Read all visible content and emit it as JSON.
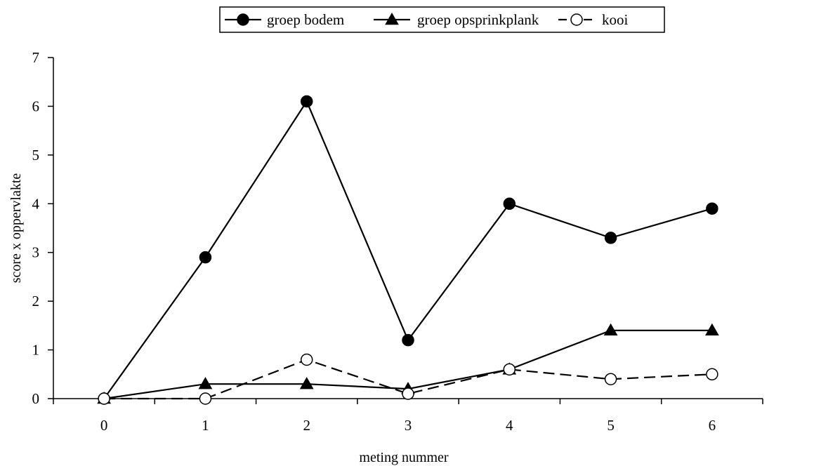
{
  "chart_data": {
    "type": "line",
    "title": "",
    "xlabel": "meting nummer",
    "ylabel": "score x oppervlakte",
    "x": [
      0,
      1,
      2,
      3,
      4,
      5,
      6
    ],
    "xlim": [
      -0.5,
      6.5
    ],
    "ylim": [
      0,
      7
    ],
    "yticks": [
      0,
      1,
      2,
      3,
      4,
      5,
      6,
      7
    ],
    "grid": false,
    "legend_position": "top-center",
    "series": [
      {
        "name": "groep bodem",
        "marker": "filled-circle",
        "line_style": "solid",
        "color": "#000000",
        "values": [
          0,
          2.9,
          6.1,
          1.2,
          4.0,
          3.3,
          3.9
        ]
      },
      {
        "name": "groep opsprinkplank",
        "marker": "filled-triangle",
        "line_style": "solid",
        "color": "#000000",
        "values": [
          0,
          0.3,
          0.3,
          0.2,
          0.6,
          1.4,
          1.4
        ]
      },
      {
        "name": "kooi",
        "marker": "open-circle",
        "line_style": "dashed",
        "color": "#000000",
        "values": [
          0,
          0,
          0.8,
          0.1,
          0.6,
          0.4,
          0.5
        ]
      }
    ]
  }
}
